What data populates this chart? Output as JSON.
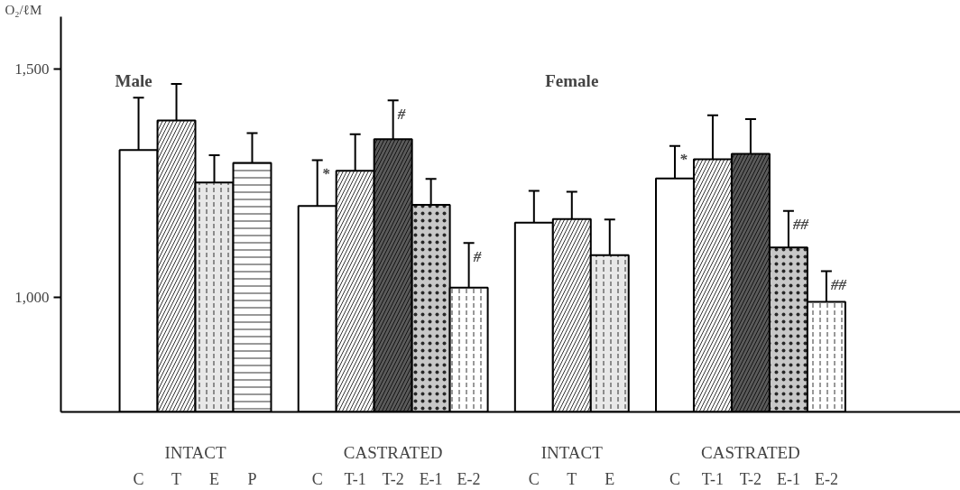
{
  "chart_data": {
    "type": "bar",
    "ylabel": "O₂/ℓM",
    "categories": [
      "C",
      "T",
      "E",
      "P",
      "C",
      "T-1",
      "T-2",
      "E-1",
      "E-2",
      "C",
      "T",
      "E",
      "C",
      "T-1",
      "T-2",
      "E-1",
      "E-2"
    ],
    "values": [
      1323,
      1388,
      1252,
      1295,
      1201,
      1278,
      1347,
      1203,
      1022,
      1164,
      1172,
      1093,
      1261,
      1303,
      1315,
      1110,
      991
    ],
    "errors": [
      115,
      80,
      60,
      65,
      100,
      80,
      85,
      57,
      98,
      70,
      60,
      78,
      71,
      96,
      76,
      80,
      67
    ],
    "colors": [
      "#ffffff",
      "#ffffff",
      "#e8e8e8",
      "#ffffff",
      "#ffffff",
      "#ffffff",
      "#5a5a5a",
      "#c8c8c8",
      "#ffffff",
      "#ffffff",
      "#ffffff",
      "#e8e8e8",
      "#ffffff",
      "#ffffff",
      "#5a5a5a",
      "#c8c8c8",
      "#ffffff"
    ],
    "ylim": [
      750,
      1615
    ],
    "yticks": [
      {
        "value": 1000,
        "label": "1,000"
      },
      {
        "value": 1500,
        "label": "1,500"
      }
    ],
    "grid": false,
    "annotations": [
      "Male",
      "Female",
      "INTACT",
      "CASTRATED",
      "INTACT",
      "CASTRATED",
      "*",
      "#",
      "#",
      "*",
      "##",
      "##"
    ]
  }
}
